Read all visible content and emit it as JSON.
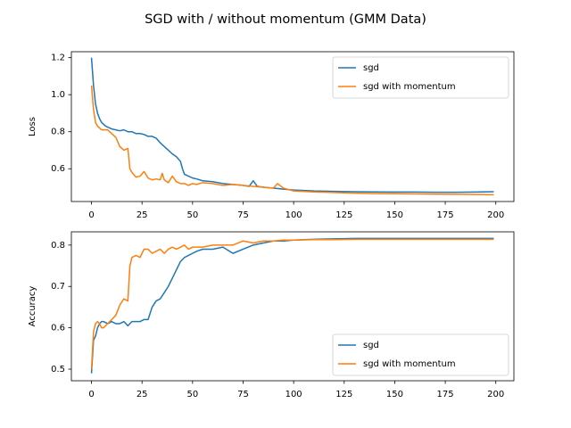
{
  "suptitle": "SGD with / without momentum (GMM Data)",
  "colors": {
    "sgd": "#1f77b4",
    "momentum": "#ff7f0e"
  },
  "chart_data": [
    {
      "type": "line",
      "ylabel": "Loss",
      "xlim": [
        -9.95,
        208.95
      ],
      "ylim": [
        0.423,
        1.232
      ],
      "xticks": [
        0,
        25,
        50,
        75,
        100,
        125,
        150,
        175,
        200
      ],
      "yticks": [
        0.6,
        0.8,
        1.0,
        1.2
      ],
      "legend": {
        "position": "upper right"
      },
      "series": [
        {
          "name": "sgd",
          "color": "#1f77b4",
          "x": [
            0,
            1,
            2,
            3,
            4,
            5,
            6,
            7,
            8,
            10,
            12,
            14,
            16,
            18,
            20,
            22,
            24,
            26,
            28,
            30,
            32,
            34,
            36,
            38,
            40,
            42,
            44,
            45,
            46,
            48,
            50,
            52,
            55,
            60,
            65,
            70,
            75,
            78,
            80,
            82,
            85,
            90,
            95,
            100,
            110,
            120,
            130,
            140,
            150,
            160,
            170,
            180,
            190,
            199
          ],
          "y": [
            1.2,
            1.05,
            0.95,
            0.9,
            0.87,
            0.85,
            0.84,
            0.83,
            0.825,
            0.815,
            0.81,
            0.805,
            0.81,
            0.8,
            0.8,
            0.79,
            0.79,
            0.785,
            0.775,
            0.775,
            0.765,
            0.74,
            0.72,
            0.7,
            0.68,
            0.665,
            0.64,
            0.6,
            0.57,
            0.56,
            0.55,
            0.545,
            0.535,
            0.53,
            0.52,
            0.515,
            0.51,
            0.505,
            0.535,
            0.505,
            0.5,
            0.495,
            0.49,
            0.485,
            0.48,
            0.478,
            0.476,
            0.475,
            0.474,
            0.474,
            0.473,
            0.473,
            0.474,
            0.476
          ]
        },
        {
          "name": "sgd with momentum",
          "color": "#ff7f0e",
          "x": [
            0,
            1,
            2,
            3,
            4,
            5,
            6,
            8,
            10,
            12,
            14,
            16,
            18,
            19,
            20,
            22,
            24,
            26,
            28,
            30,
            32,
            34,
            35,
            36,
            38,
            40,
            42,
            44,
            46,
            48,
            50,
            52,
            55,
            60,
            65,
            70,
            75,
            80,
            85,
            90,
            92,
            95,
            100,
            110,
            120,
            130,
            140,
            150,
            160,
            170,
            180,
            190,
            199
          ],
          "y": [
            1.05,
            0.92,
            0.85,
            0.83,
            0.82,
            0.81,
            0.81,
            0.81,
            0.79,
            0.77,
            0.72,
            0.7,
            0.71,
            0.6,
            0.58,
            0.555,
            0.56,
            0.585,
            0.55,
            0.54,
            0.545,
            0.54,
            0.575,
            0.54,
            0.525,
            0.56,
            0.53,
            0.52,
            0.52,
            0.51,
            0.52,
            0.515,
            0.525,
            0.52,
            0.51,
            0.515,
            0.51,
            0.505,
            0.5,
            0.495,
            0.52,
            0.495,
            0.48,
            0.475,
            0.472,
            0.468,
            0.466,
            0.465,
            0.464,
            0.463,
            0.462,
            0.461,
            0.46
          ]
        }
      ]
    },
    {
      "type": "line",
      "ylabel": "Accuracy",
      "xlim": [
        -9.95,
        208.95
      ],
      "ylim": [
        0.472,
        0.832
      ],
      "xticks": [
        0,
        25,
        50,
        75,
        100,
        125,
        150,
        175,
        200
      ],
      "yticks": [
        0.5,
        0.6,
        0.7,
        0.8
      ],
      "legend": {
        "position": "lower right"
      },
      "series": [
        {
          "name": "sgd",
          "color": "#1f77b4",
          "x": [
            0,
            1,
            2,
            3,
            4,
            5,
            6,
            8,
            10,
            12,
            14,
            16,
            18,
            20,
            22,
            24,
            26,
            28,
            30,
            32,
            34,
            36,
            38,
            40,
            42,
            44,
            46,
            48,
            50,
            52,
            55,
            60,
            65,
            70,
            75,
            80,
            85,
            90,
            95,
            100,
            110,
            120,
            130,
            140,
            150,
            160,
            170,
            180,
            190,
            199
          ],
          "y": [
            0.49,
            0.57,
            0.58,
            0.6,
            0.61,
            0.615,
            0.615,
            0.61,
            0.615,
            0.61,
            0.61,
            0.615,
            0.605,
            0.615,
            0.615,
            0.615,
            0.62,
            0.62,
            0.65,
            0.665,
            0.67,
            0.685,
            0.7,
            0.72,
            0.74,
            0.76,
            0.77,
            0.775,
            0.78,
            0.785,
            0.79,
            0.79,
            0.795,
            0.78,
            0.79,
            0.8,
            0.805,
            0.81,
            0.81,
            0.812,
            0.814,
            0.815,
            0.816,
            0.816,
            0.816,
            0.816,
            0.816,
            0.816,
            0.816,
            0.816
          ]
        },
        {
          "name": "sgd with momentum",
          "color": "#ff7f0e",
          "x": [
            0,
            1,
            2,
            3,
            4,
            5,
            6,
            8,
            10,
            12,
            14,
            16,
            18,
            19,
            20,
            22,
            24,
            26,
            28,
            30,
            32,
            34,
            36,
            38,
            40,
            42,
            44,
            46,
            48,
            50,
            55,
            60,
            65,
            70,
            75,
            80,
            85,
            90,
            95,
            100,
            110,
            120,
            130,
            140,
            150,
            160,
            170,
            180,
            190,
            199
          ],
          "y": [
            0.5,
            0.59,
            0.61,
            0.615,
            0.61,
            0.6,
            0.6,
            0.61,
            0.62,
            0.63,
            0.655,
            0.67,
            0.665,
            0.75,
            0.77,
            0.775,
            0.77,
            0.79,
            0.79,
            0.78,
            0.785,
            0.79,
            0.78,
            0.79,
            0.795,
            0.79,
            0.795,
            0.8,
            0.79,
            0.795,
            0.795,
            0.8,
            0.8,
            0.8,
            0.81,
            0.805,
            0.81,
            0.81,
            0.812,
            0.812,
            0.813,
            0.813,
            0.814,
            0.814,
            0.814,
            0.814,
            0.814,
            0.814,
            0.814,
            0.814
          ]
        }
      ]
    }
  ]
}
